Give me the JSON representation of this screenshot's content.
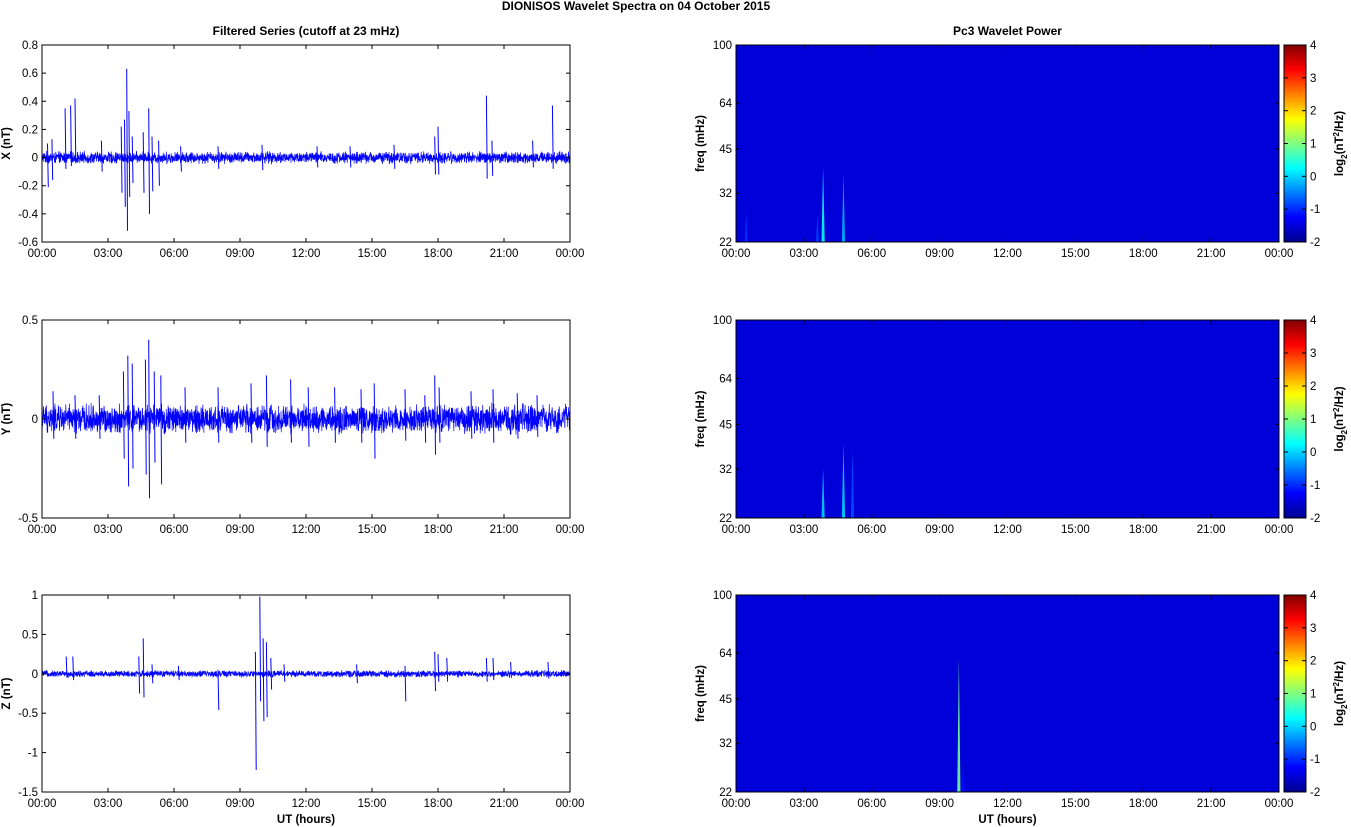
{
  "figure_title": "DIONISOS Wavelet Spectra on 04 October   2015",
  "chart_data": [
    {
      "type": "line",
      "panel": "left-1",
      "title": "Filtered Series (cutoff at 23 mHz)",
      "xlabel": "",
      "ylabel": "X (nT)",
      "xlim": [
        0,
        24
      ],
      "ylim": [
        -0.6,
        0.8
      ],
      "xticks": [
        "00:00",
        "03:00",
        "06:00",
        "09:00",
        "12:00",
        "15:00",
        "18:00",
        "21:00",
        "00:00"
      ],
      "yticks": [
        "-0.6",
        "-0.4",
        "-0.2",
        "0",
        "0.2",
        "0.4",
        "0.6",
        "0.8"
      ],
      "noise_amplitude": 0.035,
      "color": "#0000ff",
      "spikes": [
        [
          0.25,
          0.1,
          -0.21
        ],
        [
          0.45,
          0.13,
          -0.16
        ],
        [
          1.05,
          0.35,
          -0.08
        ],
        [
          1.3,
          0.37,
          -0.06
        ],
        [
          1.5,
          0.42,
          -0.04
        ],
        [
          2.7,
          0.12,
          -0.1
        ],
        [
          3.6,
          0.22,
          -0.25
        ],
        [
          3.75,
          0.27,
          -0.35
        ],
        [
          3.85,
          0.63,
          -0.52
        ],
        [
          3.95,
          0.33,
          -0.28
        ],
        [
          4.1,
          0.15,
          -0.18
        ],
        [
          4.6,
          0.18,
          -0.25
        ],
        [
          4.85,
          0.35,
          -0.4
        ],
        [
          5.0,
          0.15,
          -0.24
        ],
        [
          5.3,
          0.12,
          -0.2
        ],
        [
          6.3,
          0.08,
          -0.1
        ],
        [
          8.0,
          0.08,
          -0.08
        ],
        [
          10.0,
          0.09,
          -0.09
        ],
        [
          12.5,
          0.08,
          -0.07
        ],
        [
          14.0,
          0.08,
          -0.07
        ],
        [
          16.0,
          0.09,
          -0.08
        ],
        [
          17.85,
          0.15,
          -0.12
        ],
        [
          18.0,
          0.22,
          -0.12
        ],
        [
          20.2,
          0.44,
          -0.15
        ],
        [
          20.45,
          0.12,
          -0.13
        ],
        [
          22.3,
          0.12,
          -0.07
        ],
        [
          23.2,
          0.37,
          -0.08
        ]
      ]
    },
    {
      "type": "line",
      "panel": "left-2",
      "title": "",
      "xlabel": "",
      "ylabel": "Y (nT)",
      "xlim": [
        0,
        24
      ],
      "ylim": [
        -0.5,
        0.5
      ],
      "xticks": [
        "00:00",
        "03:00",
        "06:00",
        "09:00",
        "12:00",
        "15:00",
        "18:00",
        "21:00",
        "00:00"
      ],
      "yticks": [
        "-0.5",
        "0",
        "0.5"
      ],
      "noise_amplitude": 0.06,
      "color": "#0000ff",
      "spikes": [
        [
          0.5,
          0.14,
          -0.1
        ],
        [
          1.5,
          0.12,
          -0.1
        ],
        [
          2.6,
          0.12,
          -0.1
        ],
        [
          3.7,
          0.24,
          -0.2
        ],
        [
          3.9,
          0.32,
          -0.34
        ],
        [
          4.1,
          0.28,
          -0.25
        ],
        [
          4.7,
          0.3,
          -0.28
        ],
        [
          4.85,
          0.4,
          -0.4
        ],
        [
          5.1,
          0.24,
          -0.22
        ],
        [
          5.4,
          0.22,
          -0.33
        ],
        [
          6.5,
          0.16,
          -0.12
        ],
        [
          8.0,
          0.16,
          -0.12
        ],
        [
          9.5,
          0.18,
          -0.12
        ],
        [
          10.2,
          0.22,
          -0.14
        ],
        [
          11.3,
          0.2,
          -0.12
        ],
        [
          12.1,
          0.16,
          -0.14
        ],
        [
          13.3,
          0.16,
          -0.12
        ],
        [
          14.5,
          0.15,
          -0.12
        ],
        [
          15.1,
          0.18,
          -0.2
        ],
        [
          16.5,
          0.15,
          -0.11
        ],
        [
          17.4,
          0.12,
          -0.12
        ],
        [
          17.85,
          0.22,
          -0.18
        ],
        [
          18.05,
          0.16,
          -0.12
        ],
        [
          19.5,
          0.14,
          -0.1
        ],
        [
          20.5,
          0.15,
          -0.12
        ],
        [
          21.6,
          0.13,
          -0.1
        ],
        [
          22.5,
          0.12,
          -0.09
        ]
      ]
    },
    {
      "type": "line",
      "panel": "left-3",
      "title": "",
      "xlabel": "UT (hours)",
      "ylabel": "Z (nT)",
      "xlim": [
        0,
        24
      ],
      "ylim": [
        -1.5,
        1
      ],
      "xticks": [
        "00:00",
        "03:00",
        "06:00",
        "09:00",
        "12:00",
        "15:00",
        "18:00",
        "21:00",
        "00:00"
      ],
      "yticks": [
        "-1.5",
        "-1",
        "-0.5",
        "0",
        "0.5",
        "1"
      ],
      "noise_amplitude": 0.035,
      "color": "#0000ff",
      "spikes": [
        [
          1.1,
          0.22,
          -0.05
        ],
        [
          1.4,
          0.22,
          -0.08
        ],
        [
          4.4,
          0.22,
          -0.25
        ],
        [
          4.6,
          0.45,
          -0.3
        ],
        [
          5.0,
          0.12,
          -0.12
        ],
        [
          6.2,
          0.1,
          -0.08
        ],
        [
          8.0,
          0.05,
          -0.46
        ],
        [
          9.7,
          0.28,
          -1.22
        ],
        [
          9.9,
          0.98,
          -0.35
        ],
        [
          10.05,
          0.45,
          -0.6
        ],
        [
          10.2,
          0.4,
          -0.55
        ],
        [
          10.4,
          0.2,
          -0.2
        ],
        [
          11.0,
          0.12,
          -0.1
        ],
        [
          14.3,
          0.12,
          -0.12
        ],
        [
          16.5,
          0.1,
          -0.35
        ],
        [
          17.85,
          0.28,
          -0.22
        ],
        [
          18.0,
          0.25,
          -0.1
        ],
        [
          18.4,
          0.2,
          -0.1
        ],
        [
          20.2,
          0.2,
          -0.1
        ],
        [
          20.5,
          0.2,
          -0.08
        ],
        [
          21.3,
          0.15,
          -0.05
        ],
        [
          23.0,
          0.15,
          -0.06
        ]
      ]
    },
    {
      "type": "heatmap",
      "panel": "right-1",
      "title": "Pc3 Wavelet Power",
      "xlabel": "",
      "ylabel": "freq (mHz)",
      "xlim": [
        0,
        24
      ],
      "ylim": [
        22,
        100
      ],
      "y_scale": "log",
      "xticks": [
        "00:00",
        "03:00",
        "06:00",
        "09:00",
        "12:00",
        "15:00",
        "18:00",
        "21:00",
        "00:00"
      ],
      "yticks": [
        "22",
        "32",
        "45",
        "64",
        "100"
      ],
      "colorbar_label": "log2(nT2/Hz)",
      "clim": [
        -2,
        4
      ],
      "colorbar_ticks": [
        "-2",
        "-1",
        "0",
        "1",
        "2",
        "3",
        "4"
      ],
      "colormap": "jet",
      "background_value": -2,
      "features": [
        [
          0.45,
          28,
          -1.0
        ],
        [
          3.6,
          27,
          -0.9
        ],
        [
          3.85,
          39,
          0.3
        ],
        [
          4.75,
          37,
          -0.2
        ],
        [
          5.25,
          25,
          -1.5
        ]
      ]
    },
    {
      "type": "heatmap",
      "panel": "right-2",
      "title": "",
      "xlabel": "",
      "ylabel": "freq (mHz)",
      "xlim": [
        0,
        24
      ],
      "ylim": [
        22,
        100
      ],
      "y_scale": "log",
      "xticks": [
        "00:00",
        "03:00",
        "06:00",
        "09:00",
        "12:00",
        "15:00",
        "18:00",
        "21:00",
        "00:00"
      ],
      "yticks": [
        "22",
        "32",
        "45",
        "64",
        "100"
      ],
      "colorbar_label": "log2(nT2/Hz)",
      "clim": [
        -2,
        4
      ],
      "colorbar_ticks": [
        "-2",
        "-1",
        "0",
        "1",
        "2",
        "3",
        "4"
      ],
      "colormap": "jet",
      "background_value": -2,
      "features": [
        [
          3.85,
          32,
          0.0
        ],
        [
          4.75,
          39,
          0.0
        ],
        [
          5.15,
          37,
          -0.8
        ]
      ]
    },
    {
      "type": "heatmap",
      "panel": "right-3",
      "title": "",
      "xlabel": "UT (hours)",
      "ylabel": "freq (mHz)",
      "xlim": [
        0,
        24
      ],
      "ylim": [
        22,
        100
      ],
      "y_scale": "log",
      "xticks": [
        "00:00",
        "03:00",
        "06:00",
        "09:00",
        "12:00",
        "15:00",
        "18:00",
        "21:00",
        "00:00"
      ],
      "yticks": [
        "22",
        "32",
        "45",
        "64",
        "100"
      ],
      "colorbar_label": "log2(nT2/Hz)",
      "clim": [
        -2,
        4
      ],
      "colorbar_ticks": [
        "-2",
        "-1",
        "0",
        "1",
        "2",
        "3",
        "4"
      ],
      "colormap": "jet",
      "background_value": -2,
      "features": [
        [
          9.85,
          62,
          0.9
        ],
        [
          10.05,
          28,
          -1.2
        ]
      ]
    }
  ]
}
